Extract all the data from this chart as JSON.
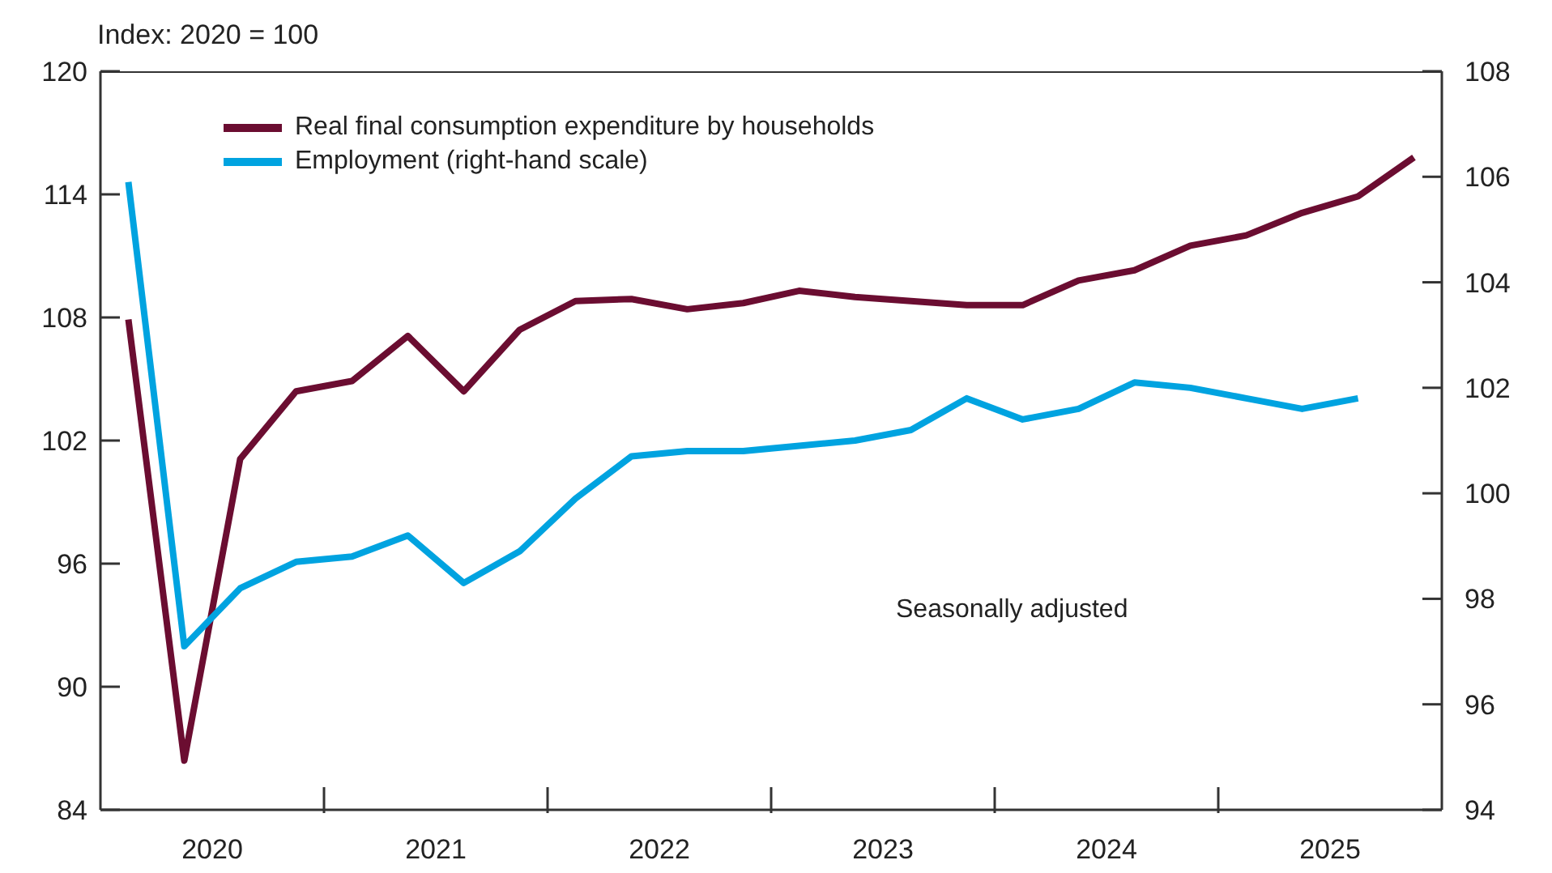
{
  "chart_data": {
    "type": "line",
    "ylabel": "Index: 2020 = 100",
    "x": [
      2020.125,
      2020.375,
      2020.625,
      2020.875,
      2021.125,
      2021.375,
      2021.625,
      2021.875,
      2022.125,
      2022.375,
      2022.625,
      2022.875,
      2023.125,
      2023.375,
      2023.625,
      2023.875,
      2024.125,
      2024.375,
      2024.625,
      2024.875,
      2025.125,
      2025.375,
      2025.625,
      2025.875
    ],
    "series": [
      {
        "name": "Real final consumption expenditure by households",
        "color": "#6b0d31",
        "values": [
          107.9,
          86.4,
          101.1,
          104.4,
          104.9,
          107.1,
          104.4,
          107.4,
          108.8,
          108.9,
          108.4,
          108.7,
          109.3,
          109.0,
          108.8,
          108.6,
          108.6,
          109.8,
          110.3,
          111.5,
          112.0,
          113.1,
          113.9,
          115.8
        ]
      },
      {
        "name": "Employment (right-hand scale)",
        "color": "#00a3e0",
        "axis": "y2",
        "values": [
          105.9,
          97.1,
          98.2,
          98.7,
          98.8,
          99.2,
          98.3,
          98.9,
          99.9,
          100.7,
          100.8,
          100.8,
          100.9,
          101.0,
          101.2,
          101.8,
          101.4,
          101.6,
          102.1,
          102.0,
          101.8,
          101.6,
          101.8,
          null
        ]
      }
    ],
    "xlim": [
      2020,
      2026
    ],
    "xticks": [
      {
        "value": 2020.5,
        "label": "2020"
      },
      {
        "value": 2021,
        "label": null
      },
      {
        "value": 2021.5,
        "label": "2021"
      },
      {
        "value": 2022,
        "label": null
      },
      {
        "value": 2022.5,
        "label": "2022"
      },
      {
        "value": 2023,
        "label": null
      },
      {
        "value": 2023.5,
        "label": "2023"
      },
      {
        "value": 2024,
        "label": null
      },
      {
        "value": 2024.5,
        "label": "2024"
      },
      {
        "value": 2025,
        "label": null
      },
      {
        "value": 2025.5,
        "label": "2025"
      }
    ],
    "ylim": [
      84,
      120
    ],
    "yticks": [
      84,
      90,
      96,
      102,
      108,
      114,
      120
    ],
    "y2lim": [
      94,
      108
    ],
    "y2ticks": [
      94,
      96,
      98,
      100,
      102,
      104,
      106,
      108
    ],
    "annotations": [
      "Seasonally adjusted"
    ],
    "legend": "top left",
    "grid": false,
    "marker": "none",
    "line_style": "solid"
  }
}
